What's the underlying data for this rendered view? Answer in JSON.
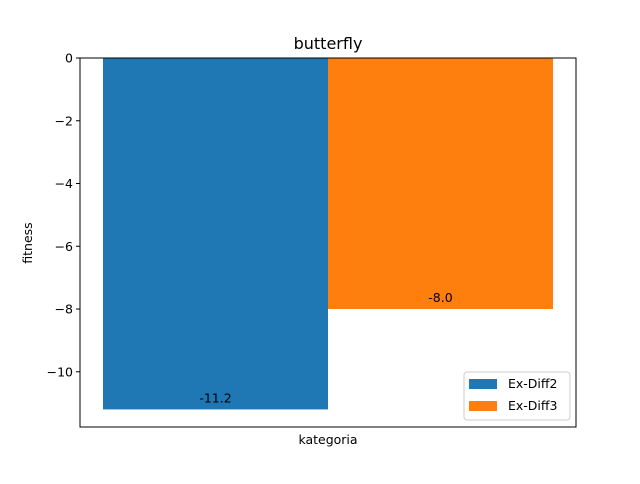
{
  "chart_data": {
    "type": "bar",
    "title": "butterfly",
    "xlabel": "kategoria",
    "ylabel": "fitness",
    "ylim": [
      -11.76,
      0
    ],
    "yticks": [
      0,
      -2,
      -4,
      -6,
      -8,
      -10
    ],
    "ytick_labels": [
      "0",
      "−2",
      "−4",
      "−6",
      "−8",
      "−10"
    ],
    "series": [
      {
        "name": "Ex-Diff2",
        "value": -11.2,
        "label": "-11.2",
        "color": "#1f77b4"
      },
      {
        "name": "Ex-Diff3",
        "value": -8.0,
        "label": "-8.0",
        "color": "#ff7f0e"
      }
    ],
    "legend": "lower-right",
    "grid": false
  }
}
